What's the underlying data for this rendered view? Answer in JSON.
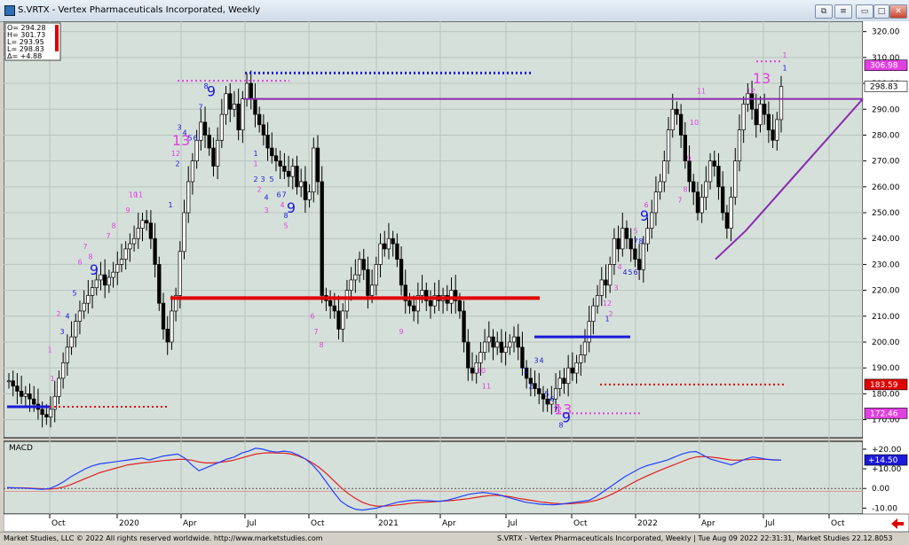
{
  "window": {
    "title": "S.VRTX - Vertex Pharmaceuticals Incorporated, Weekly",
    "buttons": {
      "restore": "⧉",
      "menu": "≡",
      "minimize": "▭",
      "maximize": "□",
      "close": "✕"
    }
  },
  "ohlc_box": [
    {
      "label": "O= 294.28"
    },
    {
      "label": "H= 301.73"
    },
    {
      "label": "L= 293.95"
    },
    {
      "label": "L= 298.83"
    },
    {
      "label": "Δ=  +4.88"
    }
  ],
  "macd_label": "MACD",
  "price_tags": {
    "current": "298.83",
    "level_306": "306.98",
    "level_183": "183.59",
    "level_172": "172.46",
    "macd": "+14.50"
  },
  "status": {
    "left": "Market Studies, LLC © 2022 All rights reserved worldwide. http://www.marketstudies.com",
    "right": "S.VRTX - Vertex Pharmaceuticals Incorporated, Weekly | Tue Aug 09 2022 22:31:31, Market Studies 22.12.8053"
  },
  "colors": {
    "bg": "#d6e0da",
    "up": "#ffffff",
    "down": "#000000",
    "magenta": "#e040e0",
    "blue": "#1a1ad8",
    "red": "#e00000",
    "purple": "#8a2ab0",
    "macd": "#2040ff",
    "signal": "#e02020"
  },
  "chart_data": [
    {
      "type": "candlestick",
      "title": "S.VRTX - Vertex Pharmaceuticals Incorporated, Weekly",
      "y_ticks": [
        170,
        180,
        190,
        200,
        210,
        220,
        230,
        240,
        250,
        260,
        270,
        280,
        290,
        300,
        310,
        320
      ],
      "x_ticks": [
        "Oct",
        "2020",
        "Apr",
        "Jul",
        "Oct",
        "2021",
        "Apr",
        "Jul",
        "Oct",
        "2022",
        "Apr",
        "Jul",
        "Oct"
      ],
      "ylim": [
        163,
        324
      ],
      "grid": true,
      "closes_weekly": [
        185,
        183,
        181,
        179,
        180,
        178,
        176,
        174,
        172,
        171,
        174,
        179,
        186,
        192,
        198,
        202,
        208,
        212,
        215,
        218,
        221,
        224,
        226,
        222,
        225,
        227,
        230,
        232,
        236,
        238,
        240,
        244,
        247,
        246,
        240,
        230,
        215,
        205,
        200,
        212,
        218,
        235,
        250,
        262,
        270,
        278,
        285,
        280,
        275,
        268,
        278,
        288,
        296,
        290,
        292,
        282,
        294,
        300,
        294,
        288,
        284,
        280,
        275,
        272,
        270,
        268,
        266,
        264,
        268,
        260,
        262,
        255,
        258,
        275,
        262,
        218,
        216,
        214,
        212,
        205,
        212,
        220,
        224,
        226,
        232,
        228,
        218,
        222,
        230,
        238,
        236,
        240,
        238,
        232,
        222,
        216,
        214,
        212,
        218,
        220,
        216,
        214,
        218,
        216,
        218,
        215,
        220,
        216,
        212,
        200,
        190,
        188,
        192,
        196,
        200,
        202,
        198,
        200,
        196,
        198,
        200,
        202,
        198,
        190,
        186,
        184,
        182,
        180,
        178,
        176,
        178,
        182,
        186,
        184,
        190,
        188,
        192,
        195,
        200,
        208,
        214,
        218,
        224,
        222,
        230,
        240,
        236,
        244,
        240,
        236,
        232,
        228,
        238,
        244,
        250,
        258,
        262,
        270,
        282,
        290,
        288,
        280,
        270,
        262,
        258,
        250,
        256,
        262,
        270,
        268,
        260,
        250,
        244,
        256,
        270,
        282,
        292,
        296,
        290,
        284,
        292,
        288,
        282,
        278,
        286,
        298.83
      ],
      "levels": [
        {
          "name": "red-support-2019",
          "y": 175,
          "style": "dotted"
        },
        {
          "name": "red-resistance-2020",
          "y": 217,
          "style": "solid"
        },
        {
          "name": "blue-pivot",
          "y": 202,
          "style": "solid"
        },
        {
          "name": "purple-horizontal",
          "y": 294,
          "style": "solid"
        },
        {
          "name": "blue-dotted-top",
          "y": 304,
          "style": "dotted"
        },
        {
          "name": "magenta-dotted-top",
          "y": 301,
          "style": "dotted"
        },
        {
          "name": "red-dotted-low",
          "y": 183.59,
          "style": "dotted"
        },
        {
          "name": "magenta-dotted-low",
          "y": 172.46,
          "style": "dotted"
        },
        {
          "name": "blue-2019-left",
          "y": 175,
          "style": "solid"
        }
      ],
      "counts": [
        {
          "t": "1",
          "x": 52,
          "y": 196,
          "c": "m"
        },
        {
          "t": "1",
          "x": 55,
          "y": 185,
          "c": "m"
        },
        {
          "t": "2",
          "x": 62,
          "y": 210,
          "c": "m"
        },
        {
          "t": "3",
          "x": 66,
          "y": 203,
          "c": "b"
        },
        {
          "t": "4",
          "x": 72,
          "y": 209,
          "c": "b"
        },
        {
          "t": "5",
          "x": 80,
          "y": 218,
          "c": "b"
        },
        {
          "t": "6",
          "x": 86,
          "y": 230,
          "c": "m"
        },
        {
          "t": "7",
          "x": 92,
          "y": 236,
          "c": "m"
        },
        {
          "t": "8",
          "x": 98,
          "y": 232,
          "c": "m"
        },
        {
          "t": "9",
          "x": 102,
          "y": 226,
          "c": "b",
          "big": true
        },
        {
          "t": "7",
          "x": 118,
          "y": 240,
          "c": "m"
        },
        {
          "t": "8",
          "x": 124,
          "y": 244,
          "c": "m"
        },
        {
          "t": "9",
          "x": 140,
          "y": 250,
          "c": "m"
        },
        {
          "t": "10",
          "x": 146,
          "y": 256,
          "c": "m"
        },
        {
          "t": "11",
          "x": 152,
          "y": 256,
          "c": "m"
        },
        {
          "t": "1",
          "x": 188,
          "y": 252,
          "c": "b"
        },
        {
          "t": "12",
          "x": 194,
          "y": 272,
          "c": "m"
        },
        {
          "t": "2",
          "x": 196,
          "y": 268,
          "c": "b"
        },
        {
          "t": "13",
          "x": 200,
          "y": 276,
          "c": "m",
          "big": true
        },
        {
          "t": "3",
          "x": 198,
          "y": 282,
          "c": "b"
        },
        {
          "t": "4",
          "x": 204,
          "y": 280,
          "c": "b"
        },
        {
          "t": "5",
          "x": 210,
          "y": 278,
          "c": "b"
        },
        {
          "t": "6",
          "x": 216,
          "y": 278,
          "c": "b"
        },
        {
          "t": "7",
          "x": 222,
          "y": 290,
          "c": "b"
        },
        {
          "t": "8",
          "x": 228,
          "y": 298,
          "c": "b"
        },
        {
          "t": "9",
          "x": 234,
          "y": 295,
          "c": "b",
          "big": true
        },
        {
          "t": "1",
          "x": 284,
          "y": 272,
          "c": "b"
        },
        {
          "t": "1",
          "x": 284,
          "y": 268,
          "c": "m"
        },
        {
          "t": "2",
          "x": 284,
          "y": 262,
          "c": "b"
        },
        {
          "t": "3",
          "x": 292,
          "y": 262,
          "c": "b"
        },
        {
          "t": "2",
          "x": 288,
          "y": 258,
          "c": "m"
        },
        {
          "t": "5",
          "x": 302,
          "y": 262,
          "c": "b"
        },
        {
          "t": "4",
          "x": 296,
          "y": 255,
          "c": "b"
        },
        {
          "t": "6",
          "x": 310,
          "y": 256,
          "c": "b"
        },
        {
          "t": "7",
          "x": 316,
          "y": 256,
          "c": "b"
        },
        {
          "t": "4",
          "x": 314,
          "y": 252,
          "c": "m"
        },
        {
          "t": "3",
          "x": 296,
          "y": 250,
          "c": "m"
        },
        {
          "t": "8",
          "x": 318,
          "y": 248,
          "c": "b"
        },
        {
          "t": "9",
          "x": 324,
          "y": 250,
          "c": "b",
          "big": true
        },
        {
          "t": "5",
          "x": 318,
          "y": 244,
          "c": "m"
        },
        {
          "t": "6",
          "x": 348,
          "y": 209,
          "c": "m"
        },
        {
          "t": "7",
          "x": 352,
          "y": 203,
          "c": "m"
        },
        {
          "t": "8",
          "x": 358,
          "y": 198,
          "c": "m"
        },
        {
          "t": "9",
          "x": 448,
          "y": 203,
          "c": "m"
        },
        {
          "t": "10",
          "x": 538,
          "y": 188,
          "c": "m"
        },
        {
          "t": "11",
          "x": 544,
          "y": 182,
          "c": "m"
        },
        {
          "t": "1",
          "x": 588,
          "y": 188,
          "c": "b"
        },
        {
          "t": "2",
          "x": 594,
          "y": 182,
          "c": "b"
        },
        {
          "t": "3",
          "x": 600,
          "y": 192,
          "c": "b"
        },
        {
          "t": "4",
          "x": 606,
          "y": 192,
          "c": "b"
        },
        {
          "t": "5",
          "x": 612,
          "y": 179,
          "c": "b"
        },
        {
          "t": "6",
          "x": 618,
          "y": 177,
          "c": "b"
        },
        {
          "t": "7",
          "x": 622,
          "y": 173,
          "c": "b"
        },
        {
          "t": "8",
          "x": 628,
          "y": 167,
          "c": "b"
        },
        {
          "t": "12",
          "x": 624,
          "y": 173,
          "c": "m"
        },
        {
          "t": "13",
          "x": 630,
          "y": 172,
          "c": "m",
          "big": true
        },
        {
          "t": "9",
          "x": 634,
          "y": 169,
          "c": "b",
          "big": true
        },
        {
          "t": "1",
          "x": 680,
          "y": 208,
          "c": "b"
        },
        {
          "t": "12",
          "x": 680,
          "y": 214,
          "c": "m"
        },
        {
          "t": "2",
          "x": 684,
          "y": 210,
          "c": "m"
        },
        {
          "t": "3",
          "x": 690,
          "y": 220,
          "c": "m"
        },
        {
          "t": "4",
          "x": 694,
          "y": 228,
          "c": "m"
        },
        {
          "t": "4",
          "x": 700,
          "y": 226,
          "c": "b"
        },
        {
          "t": "5",
          "x": 706,
          "y": 226,
          "c": "b"
        },
        {
          "t": "6",
          "x": 712,
          "y": 226,
          "c": "b"
        },
        {
          "t": "7",
          "x": 712,
          "y": 238,
          "c": "b"
        },
        {
          "t": "8",
          "x": 718,
          "y": 238,
          "c": "b"
        },
        {
          "t": "5",
          "x": 712,
          "y": 242,
          "c": "m"
        },
        {
          "t": "9",
          "x": 722,
          "y": 247,
          "c": "b",
          "big": true
        },
        {
          "t": "6",
          "x": 724,
          "y": 252,
          "c": "m"
        },
        {
          "t": "7",
          "x": 762,
          "y": 254,
          "c": "m"
        },
        {
          "t": "8",
          "x": 768,
          "y": 258,
          "c": "m"
        },
        {
          "t": "9",
          "x": 772,
          "y": 270,
          "c": "m"
        },
        {
          "t": "10",
          "x": 778,
          "y": 284,
          "c": "m"
        },
        {
          "t": "11",
          "x": 786,
          "y": 296,
          "c": "m"
        },
        {
          "t": "12",
          "x": 842,
          "y": 296,
          "c": "m"
        },
        {
          "t": "13",
          "x": 854,
          "y": 300,
          "c": "m",
          "big": true
        },
        {
          "t": "1",
          "x": 880,
          "y": 305,
          "c": "b"
        },
        {
          "t": "1",
          "x": 880,
          "y": 310,
          "c": "m"
        }
      ]
    },
    {
      "type": "line",
      "title": "MACD",
      "y_ticks": [
        "+20.00",
        "+10.00",
        "0.00",
        "-10.00"
      ],
      "series": [
        {
          "values": [
            0.5,
            0.3,
            0.2,
            0.0,
            -0.2,
            -0.4,
            0.0,
            1.5,
            3.5,
            6.0,
            8.0,
            10.0,
            11.5,
            12.5,
            13.0,
            13.5,
            14.0,
            14.5,
            15.0,
            15.5,
            14.5,
            15.5,
            16.5,
            17.0,
            17.5,
            15.5,
            12.0,
            9.0,
            10.5,
            12.0,
            13.5,
            15.0,
            16.0,
            18.0,
            19.0,
            20.5,
            20.0,
            19.0,
            18.5,
            19.0,
            18.5,
            17.0,
            15.0,
            12.0,
            8.0,
            3.0,
            -2.0,
            -6.5,
            -9.0,
            -10.5,
            -11.0,
            -10.5,
            -10.0,
            -9.0,
            -8.0,
            -7.0,
            -6.5,
            -6.0,
            -6.0,
            -6.2,
            -6.4,
            -6.5,
            -6.0,
            -5.0,
            -4.0,
            -3.0,
            -2.5,
            -2.0,
            -2.5,
            -3.0,
            -4.0,
            -5.0,
            -6.0,
            -7.0,
            -7.5,
            -8.0,
            -8.2,
            -8.3,
            -8.0,
            -7.5,
            -7.0,
            -6.5,
            -6.0,
            -4.0,
            -1.5,
            1.0,
            3.5,
            6.0,
            8.0,
            10.0,
            11.5,
            12.5,
            13.5,
            14.5,
            16.0,
            17.5,
            18.5,
            18.8,
            17.0,
            15.0,
            14.0,
            13.0,
            12.0,
            13.5,
            15.0,
            16.0,
            15.5,
            14.8,
            14.5,
            14.5
          ]
        },
        {
          "values": [
            0.3,
            0.3,
            0.3,
            0.2,
            0.0,
            -0.2,
            -0.3,
            0.0,
            0.8,
            2.0,
            3.5,
            5.0,
            6.5,
            8.0,
            9.0,
            10.0,
            11.0,
            12.0,
            12.5,
            13.0,
            13.3,
            13.8,
            14.2,
            14.5,
            14.8,
            14.8,
            14.4,
            13.5,
            13.0,
            13.0,
            13.3,
            13.8,
            14.5,
            15.5,
            16.5,
            17.5,
            18.0,
            18.2,
            18.0,
            18.0,
            17.5,
            16.5,
            15.0,
            13.0,
            10.5,
            7.5,
            4.0,
            0.5,
            -2.5,
            -5.0,
            -7.0,
            -8.3,
            -9.0,
            -9.0,
            -8.8,
            -8.4,
            -8.0,
            -7.5,
            -7.2,
            -7.0,
            -6.8,
            -6.5,
            -6.3,
            -6.0,
            -5.6,
            -5.2,
            -4.6,
            -4.0,
            -3.6,
            -3.5,
            -3.8,
            -4.3,
            -5.0,
            -5.6,
            -6.2,
            -6.8,
            -7.2,
            -7.6,
            -7.8,
            -7.8,
            -7.6,
            -7.3,
            -6.8,
            -6.0,
            -4.8,
            -3.2,
            -1.4,
            0.6,
            2.6,
            4.5,
            6.2,
            7.8,
            9.3,
            10.8,
            12.2,
            13.6,
            15.0,
            16.0,
            16.3,
            16.0,
            15.6,
            15.0,
            14.5,
            14.4,
            14.6,
            14.8,
            14.9,
            14.8,
            14.6,
            14.5
          ]
        }
      ]
    }
  ]
}
